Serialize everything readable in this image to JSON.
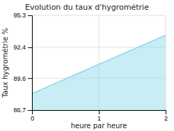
{
  "chart_data": {
    "type": "area",
    "title": "Evolution du taux d'hygrométrie",
    "x_label": "heure par heure",
    "y_label": "Taux hygrométrie %",
    "x": [
      0,
      2
    ],
    "series": [
      {
        "values": [
          88.2,
          93.5
        ],
        "baseline": 86.7,
        "color": "#88d8e8"
      }
    ],
    "xlim": [
      0,
      2
    ],
    "ylim": [
      86.7,
      95.3
    ],
    "xticks": [
      0,
      1,
      2
    ],
    "yticks": [
      86.7,
      89.6,
      92.4,
      95.3
    ],
    "grid": true
  }
}
